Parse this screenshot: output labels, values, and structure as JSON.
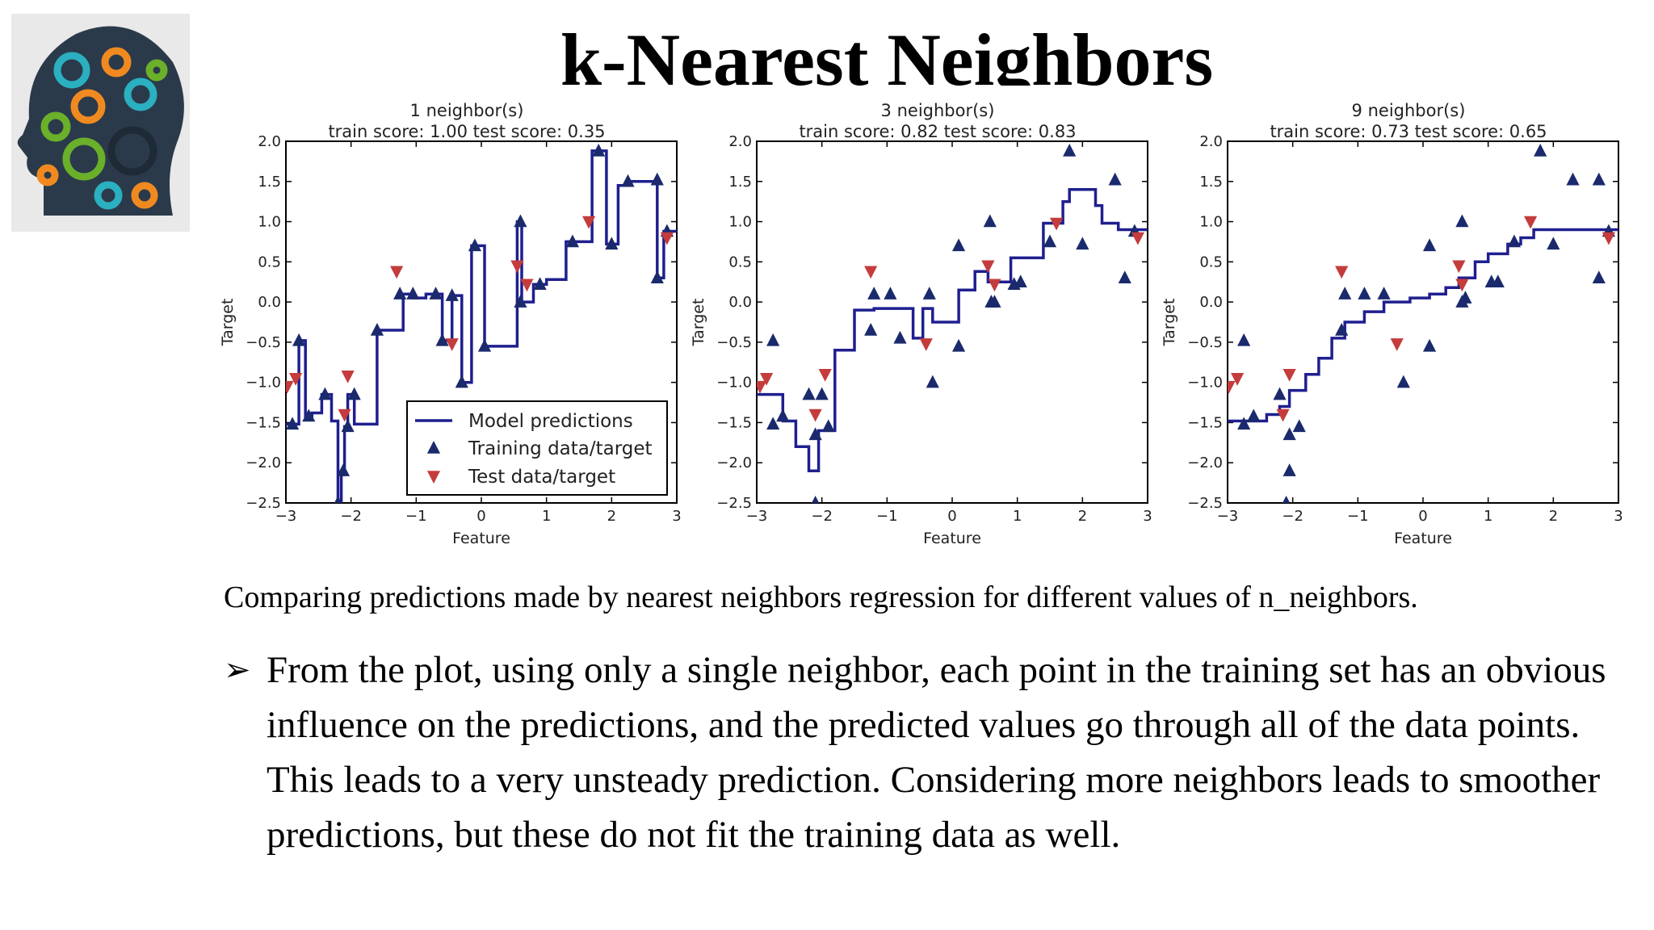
{
  "slide": {
    "title": "k-Nearest Neighbors",
    "caption": "Comparing predictions made by nearest neighbors regression for different values of n_neighbors.",
    "bullet_symbol": "➢",
    "bullet_text": "From the plot, using only a single neighbor, each point in the training set has an obvious influence on the predictions, and the predicted values go through all of the data points. This leads to a very unsteady prediction. Considering more neighbors leads to smoother predictions, but these do not fit the training data as well.",
    "logo_icon": "head-gears-icon"
  },
  "colors": {
    "line": "#1f1f8f",
    "train": "#1a2a6c",
    "test": "#c43c3c"
  },
  "chart_data": [
    {
      "type": "line",
      "title": "1 neighbor(s)",
      "subtitle": "train score: 1.00 test score: 0.35",
      "xlabel": "Feature",
      "ylabel": "Target",
      "xlim": [
        -3,
        3
      ],
      "ylim": [
        -2.5,
        2.0
      ],
      "xticks": [
        "−3",
        "−2",
        "−1",
        "0",
        "1",
        "2",
        "3"
      ],
      "yticks": [
        "2.0",
        "1.5",
        "1.0",
        "0.5",
        "0.0",
        "−0.5",
        "−1.0",
        "−1.5",
        "−2.0",
        "−2.5"
      ],
      "legend": {
        "position": "lower-right",
        "entries": [
          "Model predictions",
          "Training data/target",
          "Test data/target"
        ]
      },
      "prediction": [
        [
          -3,
          -1.52
        ],
        [
          -2.8,
          -1.52
        ],
        [
          -2.8,
          -0.48
        ],
        [
          -2.7,
          -0.48
        ],
        [
          -2.7,
          -1.42
        ],
        [
          -2.6,
          -1.42
        ],
        [
          -2.6,
          -1.38
        ],
        [
          -2.45,
          -1.38
        ],
        [
          -2.45,
          -1.15
        ],
        [
          -2.3,
          -1.15
        ],
        [
          -2.3,
          -1.48
        ],
        [
          -2.2,
          -1.48
        ],
        [
          -2.2,
          -2.5
        ],
        [
          -2.15,
          -2.5
        ],
        [
          -2.15,
          -2.1
        ],
        [
          -2.1,
          -2.1
        ],
        [
          -2.1,
          -1.55
        ],
        [
          -2.05,
          -1.55
        ],
        [
          -2.05,
          -1.15
        ],
        [
          -1.95,
          -1.15
        ],
        [
          -1.95,
          -1.52
        ],
        [
          -1.6,
          -1.52
        ],
        [
          -1.6,
          -0.35
        ],
        [
          -1.2,
          -0.35
        ],
        [
          -1.2,
          0.1
        ],
        [
          -1.05,
          0.1
        ],
        [
          -1.05,
          0.05
        ],
        [
          -0.85,
          0.05
        ],
        [
          -0.85,
          0.1
        ],
        [
          -0.6,
          0.1
        ],
        [
          -0.6,
          -0.48
        ],
        [
          -0.45,
          -0.48
        ],
        [
          -0.45,
          0.08
        ],
        [
          -0.3,
          0.08
        ],
        [
          -0.3,
          -1.0
        ],
        [
          -0.15,
          -1.0
        ],
        [
          -0.15,
          0.7
        ],
        [
          0.05,
          0.7
        ],
        [
          0.05,
          -0.55
        ],
        [
          0.55,
          -0.55
        ],
        [
          0.55,
          1.0
        ],
        [
          0.62,
          1.0
        ],
        [
          0.62,
          0.0
        ],
        [
          0.8,
          0.0
        ],
        [
          0.8,
          0.22
        ],
        [
          1.0,
          0.22
        ],
        [
          1.0,
          0.28
        ],
        [
          1.3,
          0.28
        ],
        [
          1.3,
          0.75
        ],
        [
          1.5,
          0.75
        ],
        [
          1.5,
          0.75
        ],
        [
          1.7,
          0.75
        ],
        [
          1.7,
          1.88
        ],
        [
          1.92,
          1.88
        ],
        [
          1.92,
          0.72
        ],
        [
          2.1,
          0.72
        ],
        [
          2.1,
          1.45
        ],
        [
          2.3,
          1.45
        ],
        [
          2.3,
          1.5
        ],
        [
          2.7,
          1.5
        ],
        [
          2.7,
          0.3
        ],
        [
          2.8,
          0.3
        ],
        [
          2.8,
          0.88
        ],
        [
          3,
          0.88
        ]
      ],
      "train": [
        [
          -2.9,
          -1.52
        ],
        [
          -2.8,
          -0.48
        ],
        [
          -2.65,
          -1.42
        ],
        [
          -2.4,
          -1.15
        ],
        [
          -2.2,
          -2.5
        ],
        [
          -2.12,
          -2.1
        ],
        [
          -2.05,
          -1.55
        ],
        [
          -1.95,
          -1.15
        ],
        [
          -1.6,
          -0.35
        ],
        [
          -1.25,
          0.1
        ],
        [
          -1.05,
          0.1
        ],
        [
          -0.7,
          0.1
        ],
        [
          -0.6,
          -0.48
        ],
        [
          -0.45,
          0.08
        ],
        [
          -0.3,
          -1.0
        ],
        [
          -0.1,
          0.7
        ],
        [
          0.05,
          -0.55
        ],
        [
          0.6,
          1.0
        ],
        [
          0.6,
          0.0
        ],
        [
          0.9,
          0.22
        ],
        [
          1.4,
          0.75
        ],
        [
          1.8,
          1.88
        ],
        [
          2.0,
          0.72
        ],
        [
          2.25,
          1.5
        ],
        [
          2.7,
          1.52
        ],
        [
          2.7,
          0.3
        ],
        [
          2.85,
          0.88
        ]
      ],
      "test": [
        [
          -2.98,
          -1.05
        ],
        [
          -2.85,
          -0.95
        ],
        [
          -2.1,
          -1.4
        ],
        [
          -2.05,
          -0.92
        ],
        [
          -1.3,
          0.38
        ],
        [
          -0.45,
          -0.52
        ],
        [
          0.55,
          0.45
        ],
        [
          0.7,
          0.22
        ],
        [
          1.65,
          1.0
        ],
        [
          2.85,
          0.8
        ]
      ]
    },
    {
      "type": "line",
      "title": "3 neighbor(s)",
      "subtitle": "train score: 0.82 test score: 0.83",
      "xlabel": "Feature",
      "ylabel": "Target",
      "xlim": [
        -3,
        3
      ],
      "ylim": [
        -2.5,
        2.0
      ],
      "xticks": [
        "−3",
        "−2",
        "−1",
        "0",
        "1",
        "2",
        "3"
      ],
      "yticks": [
        "2.0",
        "1.5",
        "1.0",
        "0.5",
        "0.0",
        "−0.5",
        "−1.0",
        "−1.5",
        "−2.0",
        "−2.5"
      ],
      "prediction": [
        [
          -3,
          -1.15
        ],
        [
          -2.6,
          -1.15
        ],
        [
          -2.6,
          -1.48
        ],
        [
          -2.4,
          -1.48
        ],
        [
          -2.4,
          -1.8
        ],
        [
          -2.2,
          -1.8
        ],
        [
          -2.2,
          -2.1
        ],
        [
          -2.05,
          -2.1
        ],
        [
          -2.05,
          -1.6
        ],
        [
          -1.8,
          -1.6
        ],
        [
          -1.8,
          -0.6
        ],
        [
          -1.5,
          -0.6
        ],
        [
          -1.5,
          -0.1
        ],
        [
          -1.2,
          -0.1
        ],
        [
          -1.2,
          -0.08
        ],
        [
          -0.6,
          -0.08
        ],
        [
          -0.6,
          -0.45
        ],
        [
          -0.45,
          -0.45
        ],
        [
          -0.45,
          -0.08
        ],
        [
          -0.3,
          -0.08
        ],
        [
          -0.3,
          -0.25
        ],
        [
          0.1,
          -0.25
        ],
        [
          0.1,
          0.15
        ],
        [
          0.35,
          0.15
        ],
        [
          0.35,
          0.38
        ],
        [
          0.55,
          0.38
        ],
        [
          0.55,
          0.25
        ],
        [
          0.9,
          0.25
        ],
        [
          0.9,
          0.55
        ],
        [
          1.4,
          0.55
        ],
        [
          1.4,
          0.98
        ],
        [
          1.7,
          0.98
        ],
        [
          1.7,
          1.25
        ],
        [
          1.8,
          1.25
        ],
        [
          1.8,
          1.4
        ],
        [
          2.2,
          1.4
        ],
        [
          2.2,
          1.2
        ],
        [
          2.3,
          1.2
        ],
        [
          2.3,
          0.98
        ],
        [
          2.55,
          0.98
        ],
        [
          2.55,
          0.9
        ],
        [
          3,
          0.9
        ]
      ],
      "train": [
        [
          -2.75,
          -0.48
        ],
        [
          -2.75,
          -1.52
        ],
        [
          -2.6,
          -1.42
        ],
        [
          -2.2,
          -1.15
        ],
        [
          -2.1,
          -2.5
        ],
        [
          -2.1,
          -1.65
        ],
        [
          -2.0,
          -1.15
        ],
        [
          -1.9,
          -1.55
        ],
        [
          -1.25,
          -0.35
        ],
        [
          -1.2,
          0.1
        ],
        [
          -0.95,
          0.1
        ],
        [
          -0.8,
          -0.45
        ],
        [
          -0.35,
          0.1
        ],
        [
          -0.3,
          -1.0
        ],
        [
          0.1,
          -0.55
        ],
        [
          0.1,
          0.7
        ],
        [
          0.58,
          1.0
        ],
        [
          0.6,
          0.0
        ],
        [
          0.65,
          0.0
        ],
        [
          0.95,
          0.22
        ],
        [
          1.05,
          0.25
        ],
        [
          1.5,
          0.75
        ],
        [
          1.8,
          1.88
        ],
        [
          2.0,
          0.72
        ],
        [
          2.5,
          1.52
        ],
        [
          2.65,
          0.3
        ],
        [
          2.8,
          0.88
        ]
      ],
      "test": [
        [
          -2.95,
          -1.05
        ],
        [
          -2.85,
          -0.95
        ],
        [
          -2.1,
          -1.4
        ],
        [
          -1.95,
          -0.9
        ],
        [
          -1.25,
          0.38
        ],
        [
          -0.4,
          -0.52
        ],
        [
          0.55,
          0.45
        ],
        [
          0.65,
          0.22
        ],
        [
          1.6,
          0.98
        ],
        [
          2.85,
          0.8
        ]
      ]
    },
    {
      "type": "line",
      "title": "9 neighbor(s)",
      "subtitle": "train score: 0.73 test score: 0.65",
      "xlabel": "Feature",
      "ylabel": "Target",
      "xlim": [
        -3,
        3
      ],
      "ylim": [
        -2.5,
        2.0
      ],
      "xticks": [
        "−3",
        "−2",
        "−1",
        "0",
        "1",
        "2",
        "3"
      ],
      "yticks": [
        "2.0",
        "1.5",
        "1.0",
        "0.5",
        "0.0",
        "−0.5",
        "−1.0",
        "−1.5",
        "−2.0",
        "−2.5"
      ],
      "prediction": [
        [
          -3,
          -1.48
        ],
        [
          -2.4,
          -1.48
        ],
        [
          -2.4,
          -1.4
        ],
        [
          -2.2,
          -1.4
        ],
        [
          -2.2,
          -1.3
        ],
        [
          -2.05,
          -1.3
        ],
        [
          -2.05,
          -1.1
        ],
        [
          -1.8,
          -1.1
        ],
        [
          -1.8,
          -0.9
        ],
        [
          -1.6,
          -0.9
        ],
        [
          -1.6,
          -0.7
        ],
        [
          -1.4,
          -0.7
        ],
        [
          -1.4,
          -0.45
        ],
        [
          -1.2,
          -0.45
        ],
        [
          -1.2,
          -0.25
        ],
        [
          -0.9,
          -0.25
        ],
        [
          -0.9,
          -0.12
        ],
        [
          -0.6,
          -0.12
        ],
        [
          -0.6,
          0.0
        ],
        [
          -0.2,
          0.0
        ],
        [
          -0.2,
          0.05
        ],
        [
          0.1,
          0.05
        ],
        [
          0.1,
          0.1
        ],
        [
          0.35,
          0.1
        ],
        [
          0.35,
          0.18
        ],
        [
          0.55,
          0.18
        ],
        [
          0.55,
          0.3
        ],
        [
          0.8,
          0.3
        ],
        [
          0.8,
          0.5
        ],
        [
          1.0,
          0.5
        ],
        [
          1.0,
          0.6
        ],
        [
          1.3,
          0.6
        ],
        [
          1.3,
          0.72
        ],
        [
          1.5,
          0.72
        ],
        [
          1.5,
          0.8
        ],
        [
          1.7,
          0.8
        ],
        [
          1.7,
          0.9
        ],
        [
          3,
          0.9
        ]
      ],
      "train": [
        [
          -2.75,
          -0.48
        ],
        [
          -2.75,
          -1.52
        ],
        [
          -2.6,
          -1.42
        ],
        [
          -2.2,
          -1.15
        ],
        [
          -2.1,
          -2.5
        ],
        [
          -2.05,
          -2.1
        ],
        [
          -2.05,
          -1.65
        ],
        [
          -1.9,
          -1.55
        ],
        [
          -1.25,
          -0.35
        ],
        [
          -1.2,
          0.1
        ],
        [
          -0.9,
          0.1
        ],
        [
          -0.6,
          0.1
        ],
        [
          -0.3,
          -1.0
        ],
        [
          0.1,
          -0.55
        ],
        [
          0.1,
          0.7
        ],
        [
          0.6,
          1.0
        ],
        [
          0.6,
          0.0
        ],
        [
          0.65,
          0.05
        ],
        [
          1.05,
          0.25
        ],
        [
          1.15,
          0.25
        ],
        [
          1.4,
          0.75
        ],
        [
          1.8,
          1.88
        ],
        [
          2.0,
          0.72
        ],
        [
          2.3,
          1.52
        ],
        [
          2.7,
          0.3
        ],
        [
          2.7,
          1.52
        ],
        [
          2.85,
          0.88
        ]
      ],
      "test": [
        [
          -2.98,
          -1.05
        ],
        [
          -2.85,
          -0.95
        ],
        [
          -2.15,
          -1.4
        ],
        [
          -2.05,
          -0.9
        ],
        [
          -1.25,
          0.38
        ],
        [
          -0.4,
          -0.52
        ],
        [
          0.55,
          0.45
        ],
        [
          0.6,
          0.22
        ],
        [
          1.65,
          1.0
        ],
        [
          2.85,
          0.8
        ]
      ]
    }
  ]
}
